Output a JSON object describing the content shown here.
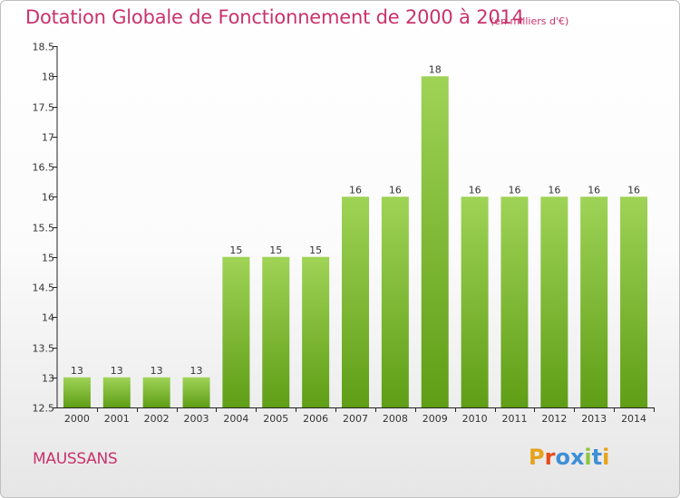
{
  "title": "Dotation Globale de Fonctionnement de 2000 à 2014",
  "subtitle": "(en milliers d'€)",
  "commune": "MAUSSANS",
  "logo": {
    "text": "Proxiti",
    "colors": [
      "#e8a21a",
      "#e74c1c",
      "#3d8fd6",
      "#3d8fd6",
      "#8cc63f",
      "#3d8fd6",
      "#e8a21a"
    ]
  },
  "colors": {
    "title": "#c8336b",
    "bar_top": "#9fd356",
    "bar_bottom": "#5f9e16",
    "axis": "#222222",
    "grid": "#cccccc"
  },
  "chart_data": {
    "type": "bar",
    "title": "Dotation Globale de Fonctionnement de 2000 à 2014",
    "subtitle": "(en milliers d'€)",
    "categories": [
      "2000",
      "2001",
      "2002",
      "2003",
      "2004",
      "2005",
      "2006",
      "2007",
      "2008",
      "2009",
      "2010",
      "2011",
      "2012",
      "2013",
      "2014"
    ],
    "values": [
      13,
      13,
      13,
      13,
      15,
      15,
      15,
      16,
      16,
      18,
      16,
      16,
      16,
      16,
      16
    ],
    "value_labels": [
      "13",
      "13",
      "13",
      "13",
      "15",
      "15",
      "15",
      "16",
      "16",
      "18",
      "16",
      "16",
      "16",
      "16",
      "16"
    ],
    "ylim": [
      12.5,
      18.5
    ],
    "yticks": [
      "12.5",
      "13",
      "13.5",
      "14",
      "14.5",
      "15",
      "15.5",
      "16",
      "16.5",
      "17",
      "17.5",
      "18",
      "18.5"
    ],
    "grid": false,
    "legend": "none"
  }
}
